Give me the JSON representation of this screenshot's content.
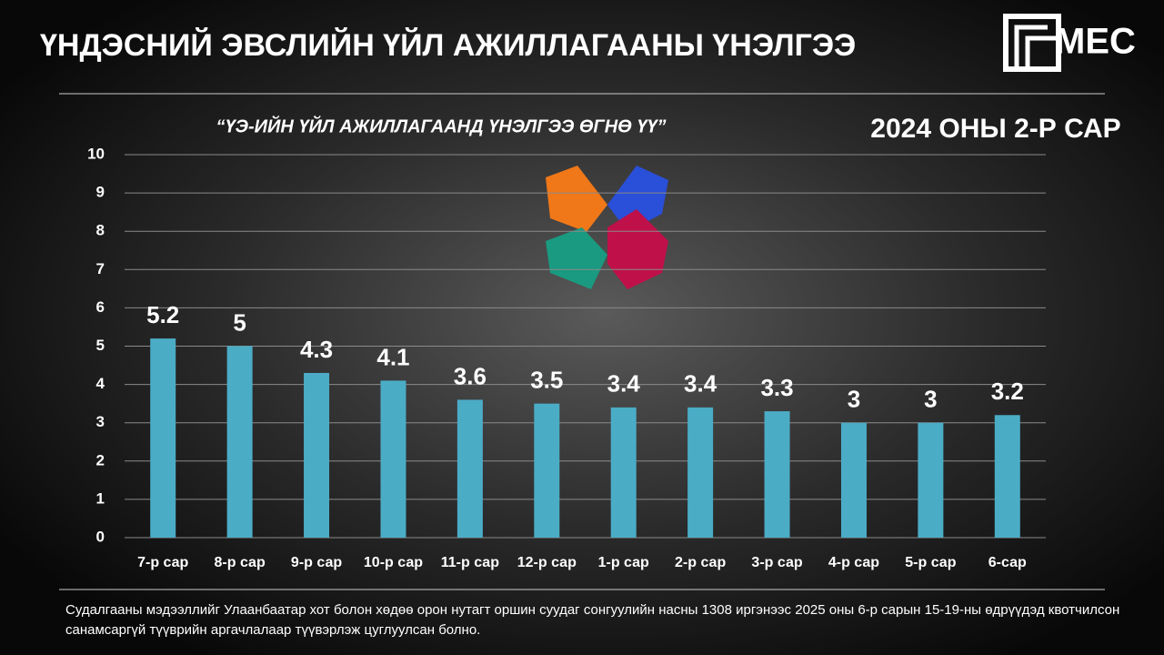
{
  "header": {
    "title": "ҮНДЭСНИЙ ЭВСЛИЙН ҮЙЛ АЖИЛЛАГААНЫ ҮНЭЛГЭЭ",
    "logo": "MEC",
    "period": "2024 ОНЫ 2-Р САР"
  },
  "chart_data": {
    "type": "bar",
    "title": "“ҮЭ-ИЙН ҮЙЛ АЖИЛЛАГААНД ҮНЭЛГЭЭ ӨГНӨ ҮҮ”",
    "categories": [
      "7-р сар",
      "8-р сар",
      "9-р сар",
      "10-р сар",
      "11-р сар",
      "12-р сар",
      "1-р сар",
      "2-р сар",
      "3-р сар",
      "4-р сар",
      "5-р сар",
      "6-сар"
    ],
    "values": [
      5.2,
      5,
      4.3,
      4.1,
      3.6,
      3.5,
      3.4,
      3.4,
      3.3,
      3,
      3,
      3.2
    ],
    "color": "#4bacc6",
    "ylim": [
      0,
      10
    ],
    "yticks": [
      0,
      1,
      2,
      3,
      4,
      5,
      6,
      7,
      8,
      9,
      10
    ],
    "grid": true
  },
  "footnote": "Судалгааны мэдээллийг Улаанбаатар хот болон хөдөө орон нутагт оршин суудаг сонгуулийн насны 1308 иргэнээс 2025 оны 6-р сарын 15-19-ны өдрүүдэд квотчилсон санамсаргүй түүврийн аргачлалаар түүвэрлэж цуглуулсан болно."
}
